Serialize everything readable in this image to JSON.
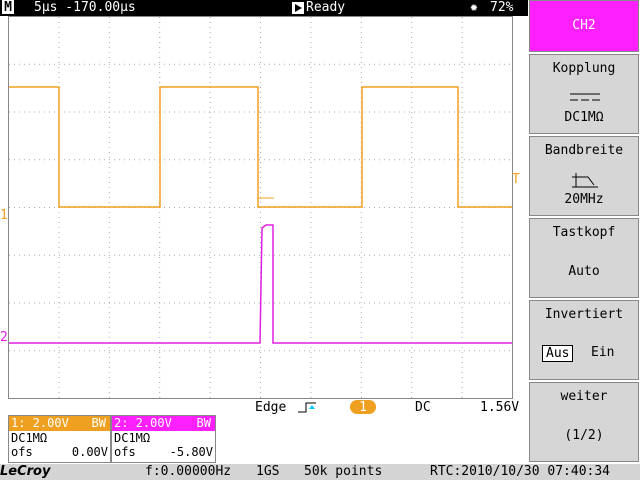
{
  "status_bar": {
    "mode_icon": "M",
    "timebase": "5µs -170.00µs",
    "state": "Ready",
    "battery": "72%"
  },
  "menu": {
    "title": "CH2",
    "items": [
      {
        "label": "Kopplung",
        "value": "DC1MΩ"
      },
      {
        "label": "Bandbreite",
        "value": "20MHz"
      },
      {
        "label": "Tastkopf",
        "value": "Auto"
      }
    ],
    "invert": {
      "label": "Invertiert",
      "options": [
        "Aus",
        "Ein"
      ]
    },
    "more": {
      "label": "weiter",
      "value": "(1/2)"
    }
  },
  "markers": {
    "ch1": "1",
    "ch2": "2",
    "trigger": "T"
  },
  "trigger": {
    "type": "Edge",
    "source": "1",
    "coupling": "DC",
    "level": "1.56V"
  },
  "channels": [
    {
      "header": "1: 2.00V",
      "bw": "BW",
      "coupling": "DC1MΩ",
      "ofs_label": "ofs",
      "ofs": "0.00V"
    },
    {
      "header": "2: 2.00V",
      "bw": "BW",
      "coupling": "DC1MΩ",
      "ofs_label": "ofs",
      "ofs": "-5.80V"
    }
  ],
  "footer": {
    "brand": "LeCroy",
    "frequency": "f:0.00000Hz",
    "rate": "1GS",
    "points": "50k points",
    "clock": "RTC:2010/10/30 07:40:34"
  }
}
